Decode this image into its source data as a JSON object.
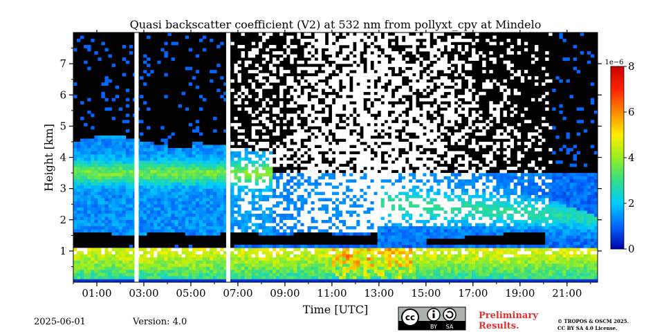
{
  "chart_data": {
    "type": "heatmap",
    "title": "Quasi backscatter coefficient (V2) at 532 nm from pollyxt_cpv at Mindelo",
    "xlabel": "Time [UTC]",
    "ylabel": "Height [km]",
    "x_ticks": [
      "01:00",
      "03:00",
      "05:00",
      "07:00",
      "09:00",
      "11:00",
      "13:00",
      "15:00",
      "17:00",
      "19:00",
      "21:00"
    ],
    "y_ticks": [
      "1",
      "2",
      "3",
      "4",
      "5",
      "6",
      "7"
    ],
    "x_range_hours": [
      0.0,
      22.3
    ],
    "y_range_km": [
      0.0,
      8.0
    ],
    "colorbar": {
      "ticks": [
        "0",
        "2",
        "4",
        "6",
        "8"
      ],
      "range": [
        0,
        8
      ],
      "scale_label": "1e−6",
      "colormap": [
        "#0000aa",
        "#0066ff",
        "#00ccff",
        "#33dd88",
        "#99ee22",
        "#ffee00",
        "#ff8800",
        "#ff2200",
        "#cc0000"
      ]
    },
    "data_gaps_hours": [
      [
        2.6,
        2.78
      ],
      [
        6.5,
        6.68
      ]
    ],
    "layers": [
      {
        "name": "aerosol layer",
        "start_h": 0.0,
        "end_h": 7.5,
        "base_km": 2.5,
        "top_km": 4.5,
        "peak_km": 3.5,
        "peak_value": 3.5
      },
      {
        "name": "low-signal band (black)",
        "start_h": 0.0,
        "end_h": 13.0,
        "base_km": 1.15,
        "top_km": 1.55
      },
      {
        "name": "boundary layer",
        "start_h": 0.0,
        "end_h": 22.3,
        "base_km": 0.1,
        "top_km": 1.1,
        "peak_value": 5.5
      }
    ]
  },
  "footer": {
    "date": "2025-06-01",
    "version": "Version: 4.0",
    "preliminary_line1": "Preliminary",
    "preliminary_line2": "Results.",
    "copyright_line1": "© TROPOS & OSCM 2025.",
    "copyright_line2": "CC BY SA 4.0 License.",
    "license_badge": {
      "cc": "cc",
      "by": "BY",
      "sa": "SA"
    }
  }
}
